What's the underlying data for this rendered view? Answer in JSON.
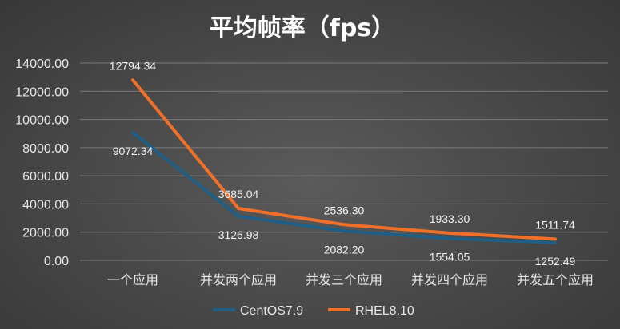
{
  "chart_data": {
    "type": "line",
    "title": "平均帧率（fps）",
    "categories": [
      "一个应用",
      "并发两个应用",
      "并发三个应用",
      "并发四个应用",
      "并发五个应用"
    ],
    "y_ticks": [
      "0.00",
      "2000.00",
      "4000.00",
      "6000.00",
      "8000.00",
      "10000.00",
      "12000.00",
      "14000.00"
    ],
    "ylim": [
      0,
      14000
    ],
    "grid": true,
    "legend_position": "bottom",
    "series": [
      {
        "name": "CentOS7.9",
        "color": "#1f5f86",
        "values": [
          9072.34,
          3126.98,
          2082.2,
          1554.05,
          1252.49
        ],
        "labels": [
          "9072.34",
          "3126.98",
          "2082.20",
          "1554.05",
          "1252.49"
        ]
      },
      {
        "name": "RHEL8.10",
        "color": "#f0702a",
        "values": [
          12794.34,
          3685.04,
          2536.3,
          1933.3,
          1511.74
        ],
        "labels": [
          "12794.34",
          "3685.04",
          "2536.30",
          "1933.30",
          "1511.74"
        ]
      }
    ]
  }
}
